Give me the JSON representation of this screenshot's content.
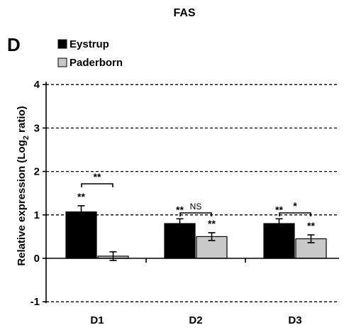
{
  "chart_data": {
    "type": "bar",
    "title": "FAS",
    "panel_label": "D",
    "ylabel": "Relative expression (Log",
    "ylabel_sub": "2",
    "ylabel_tail": " ratio)",
    "ylim": [
      -1,
      4
    ],
    "yticks": [
      -1,
      0,
      1,
      2,
      3,
      4
    ],
    "grid": "dashed at each y tick",
    "legend_position": "top-left",
    "categories": [
      "D1",
      "D2",
      "D3"
    ],
    "series": [
      {
        "name": "Eystrup",
        "color": "#000000",
        "values": [
          1.07,
          0.8,
          0.8
        ],
        "errors": [
          0.14,
          0.11,
          0.11
        ],
        "marks": [
          "**",
          "**",
          "**"
        ]
      },
      {
        "name": "Paderborn",
        "color": "#c8c8c8",
        "values": [
          0.05,
          0.5,
          0.45
        ],
        "errors": [
          0.1,
          0.09,
          0.09
        ],
        "marks": [
          "",
          "**",
          "**"
        ]
      }
    ],
    "comparisons": [
      "**",
      "NS",
      "*"
    ]
  }
}
